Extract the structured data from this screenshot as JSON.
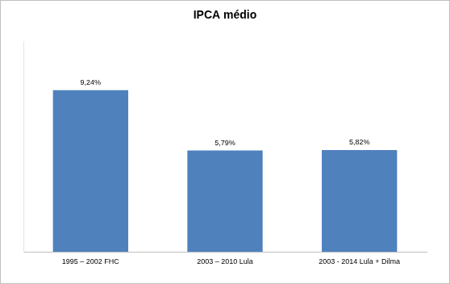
{
  "chart_data": {
    "type": "bar",
    "title": "IPCA médio",
    "categories": [
      "1995 – 2002 FHC",
      "2003 – 2010 Lula",
      "2003 - 2014 Lula + Dilma"
    ],
    "values": [
      9.24,
      5.79,
      5.82
    ],
    "value_labels": [
      "9,24%",
      "5,79%",
      "5,82%"
    ],
    "color": "#4f81bd",
    "ylim": [
      0,
      12
    ],
    "grid": false,
    "data_labels": true,
    "tick_labels": "x"
  }
}
